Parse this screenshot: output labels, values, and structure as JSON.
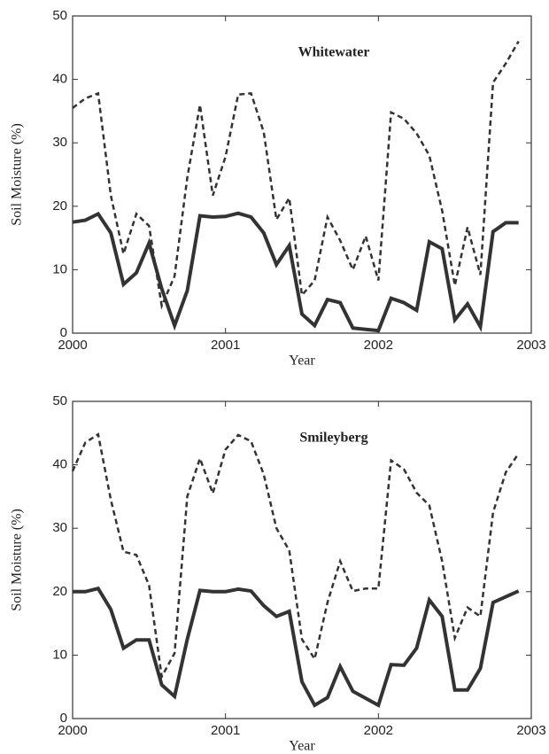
{
  "chart_data": [
    {
      "type": "line",
      "title": "Whitewater",
      "x_label": "Year",
      "y_label": "Soil Moisture (%)",
      "x": [
        2000,
        2000.083,
        2000.167,
        2000.25,
        2000.333,
        2000.417,
        2000.5,
        2000.583,
        2000.667,
        2000.75,
        2000.833,
        2000.917,
        2001,
        2001.083,
        2001.167,
        2001.25,
        2001.333,
        2001.417,
        2001.5,
        2001.583,
        2001.667,
        2001.75,
        2001.833,
        2001.917,
        2002,
        2002.083,
        2002.167,
        2002.25,
        2002.333,
        2002.417,
        2002.5,
        2002.583,
        2002.667,
        2002.75,
        2002.833,
        2002.917
      ],
      "series": [
        {
          "color": "#333333",
          "dash": false,
          "values": [
            17.5,
            17.8,
            18.8,
            15.8,
            7.7,
            9.5,
            14.2,
            7,
            1.2,
            6.7,
            18.5,
            18.3,
            18.4,
            18.9,
            18.3,
            15.8,
            10.8,
            13.8,
            3,
            1.2,
            5.3,
            4.8,
            0.8,
            0.6,
            0.4,
            5.5,
            4.8,
            3.6,
            14.4,
            13.3,
            2.1,
            4.6,
            1,
            16,
            17.4,
            17.4
          ]
        },
        {
          "color": "#333333",
          "dash": true,
          "values": [
            35.5,
            37,
            37.8,
            21.7,
            12.5,
            18.8,
            16.9,
            4.3,
            9,
            24.5,
            36,
            21.7,
            27.8,
            37.6,
            37.8,
            31.7,
            17.9,
            21.3,
            6,
            8.3,
            18.3,
            14.6,
            10,
            15.3,
            8.3,
            34.8,
            33.8,
            31.5,
            28,
            19.3,
            7.5,
            16.7,
            9.2,
            39.5,
            42.5,
            46
          ]
        }
      ],
      "xlim": [
        2000,
        2003
      ],
      "xticks": [
        2000,
        2001,
        2002,
        2003
      ],
      "ylim": [
        0,
        50
      ],
      "yticks": [
        0,
        10,
        20,
        30,
        40,
        50
      ]
    },
    {
      "type": "line",
      "title": "Smileyberg",
      "x_label": "Year",
      "y_label": "Soil Moisture (%)",
      "x": [
        2000,
        2000.083,
        2000.167,
        2000.25,
        2000.333,
        2000.417,
        2000.5,
        2000.583,
        2000.667,
        2000.75,
        2000.833,
        2000.917,
        2001,
        2001.083,
        2001.167,
        2001.25,
        2001.333,
        2001.417,
        2001.5,
        2001.583,
        2001.667,
        2001.75,
        2001.833,
        2001.917,
        2002,
        2002.083,
        2002.167,
        2002.25,
        2002.333,
        2002.417,
        2002.5,
        2002.583,
        2002.667,
        2002.75,
        2002.833,
        2002.917
      ],
      "series": [
        {
          "color": "#333333",
          "dash": false,
          "values": [
            20,
            20,
            20.5,
            17.2,
            11.1,
            12.4,
            12.4,
            5.3,
            3.5,
            12.5,
            20.2,
            20,
            20,
            20.4,
            20.1,
            17.8,
            16.1,
            16.9,
            5.8,
            2.1,
            3.3,
            8.2,
            4.3,
            3.2,
            2.1,
            8.5,
            8.4,
            11.1,
            18.7,
            16.1,
            4.5,
            4.5,
            7.9,
            18.3,
            19.2,
            20.1
          ]
        },
        {
          "color": "#333333",
          "dash": true,
          "values": [
            39,
            43.5,
            44.8,
            34.5,
            26.3,
            25.8,
            21,
            6.6,
            10.3,
            35,
            41,
            35.5,
            42.4,
            44.7,
            43.7,
            38.5,
            30,
            26.5,
            12.5,
            9.4,
            18.3,
            24.8,
            20.1,
            20.5,
            20.5,
            40.7,
            39.3,
            35.6,
            33.6,
            24.8,
            12.7,
            17.5,
            16.1,
            32.5,
            38.8,
            41.8
          ]
        }
      ],
      "xlim": [
        2000,
        2003
      ],
      "xticks": [
        2000,
        2001,
        2002,
        2003
      ],
      "ylim": [
        0,
        50
      ],
      "yticks": [
        0,
        10,
        20,
        30,
        40,
        50
      ]
    }
  ]
}
